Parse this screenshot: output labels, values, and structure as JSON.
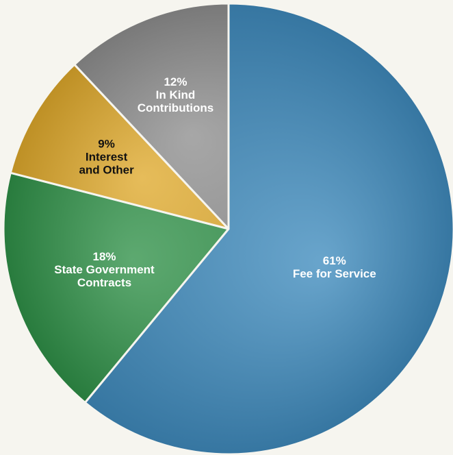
{
  "chart_data": {
    "type": "pie",
    "title": "",
    "slices": [
      {
        "percent_label": "61%",
        "label_lines": [
          "Fee for Service"
        ],
        "value": 61,
        "color": "#3f8bbd",
        "label_color": "#ffffff"
      },
      {
        "percent_label": "18%",
        "label_lines": [
          "State Government",
          "Contracts"
        ],
        "value": 18,
        "color": "#2f9148",
        "label_color": "#ffffff"
      },
      {
        "percent_label": "9%",
        "label_lines": [
          "Interest",
          "and Other"
        ],
        "value": 9,
        "color": "#dfa92c",
        "label_color": "#111111"
      },
      {
        "percent_label": "12%",
        "label_lines": [
          "In Kind",
          "Contributions"
        ],
        "value": 12,
        "color": "#8e8e8e",
        "label_color": "#ffffff"
      }
    ],
    "start": "top, clockwise"
  },
  "colors": {
    "background": "#f6f5ef",
    "slice_border": "#f6f5ef"
  }
}
